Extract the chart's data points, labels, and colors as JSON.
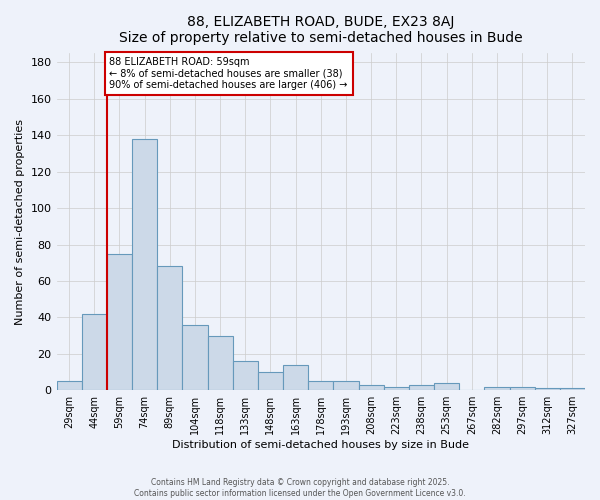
{
  "title": "88, ELIZABETH ROAD, BUDE, EX23 8AJ",
  "subtitle": "Size of property relative to semi-detached houses in Bude",
  "xlabel": "Distribution of semi-detached houses by size in Bude",
  "ylabel": "Number of semi-detached properties",
  "annotation_line1": "88 ELIZABETH ROAD: 59sqm",
  "annotation_line2": "← 8% of semi-detached houses are smaller (38)",
  "annotation_line3": "90% of semi-detached houses are larger (406) →",
  "bar_values": [
    5,
    42,
    75,
    138,
    68,
    36,
    30,
    16,
    10,
    14,
    5,
    5,
    3,
    2,
    3,
    4,
    0,
    2,
    2,
    1,
    1
  ],
  "categories": [
    "29sqm",
    "44sqm",
    "59sqm",
    "74sqm",
    "89sqm",
    "104sqm",
    "118sqm",
    "133sqm",
    "148sqm",
    "163sqm",
    "178sqm",
    "193sqm",
    "208sqm",
    "223sqm",
    "238sqm",
    "253sqm",
    "267sqm",
    "282sqm",
    "297sqm",
    "312sqm",
    "327sqm"
  ],
  "bar_color": "#ccd9e8",
  "bar_edge_color": "#6699bb",
  "red_line_index": 2,
  "annotation_box_color": "#ffffff",
  "annotation_box_edge_color": "#cc0000",
  "grid_color": "#cccccc",
  "background_color": "#eef2fa",
  "ylim": [
    0,
    185
  ],
  "yticks": [
    0,
    20,
    40,
    60,
    80,
    100,
    120,
    140,
    160,
    180
  ],
  "footer_line1": "Contains HM Land Registry data © Crown copyright and database right 2025.",
  "footer_line2": "Contains public sector information licensed under the Open Government Licence v3.0."
}
